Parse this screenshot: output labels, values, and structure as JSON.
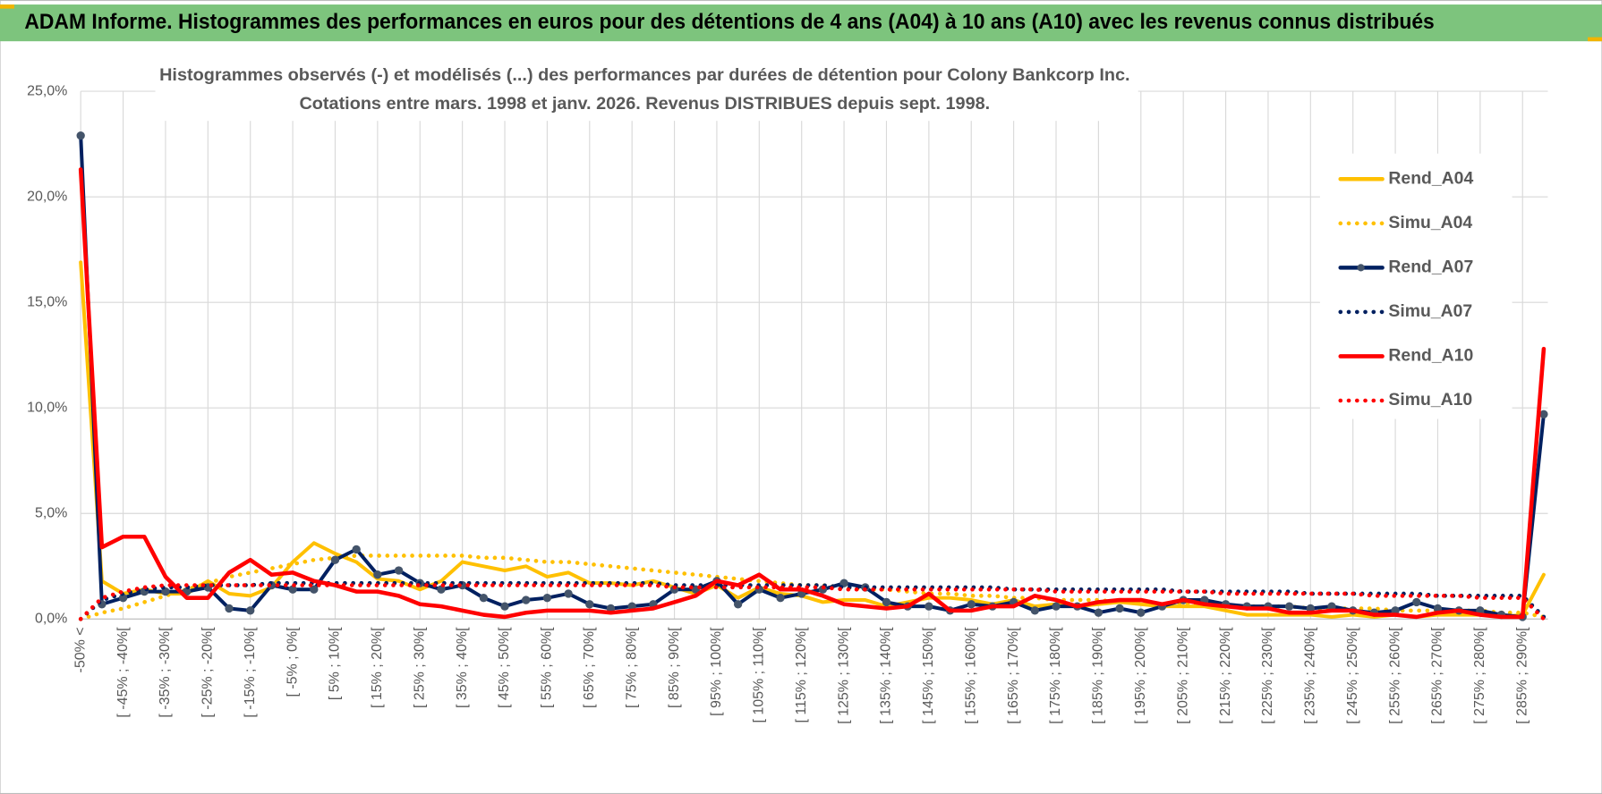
{
  "header": {
    "title": "ADAM Informe. Histogrammes des performances en euros pour des détentions de 4 ans (A04) à 10 ans (A10) avec les revenus connus distribués"
  },
  "chart_data": {
    "type": "line",
    "title": "Histogrammes observés (-) et modélisés (...) des performances par durées de détention pour Colony Bankcorp Inc.",
    "subtitle": "Cotations entre mars. 1998 et janv. 2026. Revenus DISTRIBUES depuis sept. 1998.",
    "categories": [
      "-50% <",
      null,
      "[ -45% ; -40%[",
      null,
      "[ -35% ; -30%[",
      null,
      "[ -25% ; -20%[",
      null,
      "[ -15% ; -10%[",
      null,
      "[ -5% ; 0%[",
      null,
      "[ 5% ; 10%[",
      null,
      "[ 15% ; 20%[",
      null,
      "[ 25% ; 30%[",
      null,
      "[ 35% ; 40%[",
      null,
      "[ 45% ; 50%[",
      null,
      "[ 55% ; 60%[",
      null,
      "[ 65% ; 70%[",
      null,
      "[ 75% ; 80%[",
      null,
      "[ 85% ; 90%[",
      null,
      "[ 95% ; 100%[",
      null,
      "[ 105% ; 110%[",
      null,
      "[ 115% ; 120%[",
      null,
      "[ 125% ; 130%[",
      null,
      "[ 135% ; 140%[",
      null,
      "[ 145% ; 150%[",
      null,
      "[ 155% ; 160%[",
      null,
      "[ 165% ; 170%[",
      null,
      "[ 175% ; 180%[",
      null,
      "[ 185% ; 190%[",
      null,
      "[ 195% ; 200%[",
      null,
      "[ 205% ; 210%[",
      null,
      "[ 215% ; 220%[",
      null,
      "[ 225% ; 230%[",
      null,
      "[ 235% ; 240%[",
      null,
      "[ 245% ; 250%[",
      null,
      "[ 255% ; 260%[",
      null,
      "[ 265% ; 270%[",
      null,
      "[ 275% ; 280%[",
      null,
      "[ 285% ; 290%[",
      null
    ],
    "ylim": [
      0,
      25
    ],
    "yticks": [
      {
        "value": 0,
        "label": "0,0%"
      },
      {
        "value": 5,
        "label": "5,0%"
      },
      {
        "value": 10,
        "label": "10,0%"
      },
      {
        "value": 15,
        "label": "15,0%"
      },
      {
        "value": 20,
        "label": "20,0%"
      },
      {
        "value": 25,
        "label": "25,0%"
      }
    ],
    "grid": true,
    "legend": "right",
    "series": [
      {
        "name": "Rend_A04",
        "color": "#ffc000",
        "style": "solid",
        "markers": false,
        "values": [
          16.9,
          1.8,
          1.2,
          1.4,
          1.2,
          1.2,
          1.8,
          1.2,
          1.1,
          1.5,
          2.7,
          3.6,
          3.1,
          2.7,
          1.9,
          1.8,
          1.4,
          1.8,
          2.7,
          2.5,
          2.3,
          2.5,
          2.0,
          2.2,
          1.7,
          1.7,
          1.6,
          1.8,
          1.5,
          1.2,
          1.6,
          1.0,
          1.5,
          1.2,
          1.1,
          0.8,
          0.9,
          0.9,
          0.6,
          0.8,
          1.0,
          1.0,
          0.9,
          0.7,
          0.9,
          0.6,
          0.7,
          0.6,
          0.7,
          0.8,
          0.7,
          0.6,
          0.6,
          0.6,
          0.4,
          0.2,
          0.2,
          0.2,
          0.2,
          0.1,
          0.2,
          0.1,
          0.2,
          0.1,
          0.2,
          0.2,
          0.2,
          0.1,
          0.2,
          2.1
        ]
      },
      {
        "name": "Simu_A04",
        "color": "#ffc000",
        "style": "dotted",
        "markers": false,
        "values": [
          0.0,
          0.3,
          0.5,
          0.8,
          1.1,
          1.4,
          1.7,
          2.0,
          2.2,
          2.4,
          2.6,
          2.8,
          2.9,
          3.0,
          3.0,
          3.0,
          3.0,
          3.0,
          3.0,
          2.9,
          2.9,
          2.8,
          2.7,
          2.7,
          2.6,
          2.5,
          2.4,
          2.3,
          2.2,
          2.1,
          2.0,
          1.9,
          1.8,
          1.7,
          1.6,
          1.6,
          1.5,
          1.4,
          1.4,
          1.3,
          1.2,
          1.2,
          1.1,
          1.1,
          1.0,
          1.0,
          0.9,
          0.9,
          0.9,
          0.8,
          0.8,
          0.7,
          0.7,
          0.7,
          0.6,
          0.6,
          0.6,
          0.6,
          0.5,
          0.5,
          0.5,
          0.5,
          0.4,
          0.4,
          0.4,
          0.4,
          0.4,
          0.3,
          0.3,
          0.1
        ]
      },
      {
        "name": "Rend_A07",
        "color": "#002060",
        "style": "solid",
        "markers": true,
        "values": [
          22.9,
          0.7,
          1.0,
          1.3,
          1.3,
          1.3,
          1.5,
          0.5,
          0.4,
          1.6,
          1.4,
          1.4,
          2.8,
          3.3,
          2.1,
          2.3,
          1.7,
          1.4,
          1.6,
          1.0,
          0.6,
          0.9,
          1.0,
          1.2,
          0.7,
          0.5,
          0.6,
          0.7,
          1.4,
          1.4,
          1.8,
          0.7,
          1.4,
          1.0,
          1.2,
          1.4,
          1.7,
          1.5,
          0.8,
          0.6,
          0.6,
          0.4,
          0.7,
          0.6,
          0.8,
          0.4,
          0.6,
          0.6,
          0.3,
          0.5,
          0.3,
          0.6,
          0.9,
          0.9,
          0.7,
          0.6,
          0.6,
          0.6,
          0.5,
          0.6,
          0.4,
          0.3,
          0.4,
          0.8,
          0.5,
          0.4,
          0.4,
          0.2,
          0.1,
          9.7
        ]
      },
      {
        "name": "Simu_A07",
        "color": "#002060",
        "style": "dotted",
        "markers": false,
        "values": [
          0.0,
          0.9,
          1.2,
          1.4,
          1.5,
          1.5,
          1.6,
          1.6,
          1.6,
          1.7,
          1.7,
          1.7,
          1.7,
          1.7,
          1.7,
          1.7,
          1.7,
          1.7,
          1.7,
          1.7,
          1.7,
          1.7,
          1.7,
          1.7,
          1.7,
          1.7,
          1.7,
          1.7,
          1.6,
          1.6,
          1.6,
          1.6,
          1.6,
          1.6,
          1.6,
          1.6,
          1.5,
          1.5,
          1.5,
          1.5,
          1.5,
          1.5,
          1.5,
          1.5,
          1.4,
          1.4,
          1.4,
          1.4,
          1.4,
          1.4,
          1.4,
          1.4,
          1.3,
          1.3,
          1.3,
          1.3,
          1.3,
          1.3,
          1.2,
          1.2,
          1.2,
          1.2,
          1.2,
          1.2,
          1.1,
          1.1,
          1.1,
          1.1,
          1.1,
          0.1
        ]
      },
      {
        "name": "Rend_A10",
        "color": "#ff0000",
        "style": "solid",
        "markers": false,
        "values": [
          21.3,
          3.4,
          3.9,
          3.9,
          2.0,
          1.0,
          1.0,
          2.2,
          2.8,
          2.1,
          2.2,
          1.8,
          1.6,
          1.3,
          1.3,
          1.1,
          0.7,
          0.6,
          0.4,
          0.2,
          0.1,
          0.3,
          0.4,
          0.4,
          0.4,
          0.3,
          0.4,
          0.5,
          0.8,
          1.1,
          1.8,
          1.6,
          2.1,
          1.4,
          1.4,
          1.1,
          0.7,
          0.6,
          0.5,
          0.6,
          1.2,
          0.4,
          0.4,
          0.6,
          0.6,
          1.1,
          0.9,
          0.6,
          0.8,
          0.9,
          0.9,
          0.7,
          0.9,
          0.7,
          0.6,
          0.5,
          0.5,
          0.3,
          0.3,
          0.4,
          0.4,
          0.2,
          0.2,
          0.1,
          0.3,
          0.4,
          0.2,
          0.1,
          0.1,
          12.8
        ]
      },
      {
        "name": "Simu_A10",
        "color": "#ff0000",
        "style": "dotted",
        "markers": false,
        "values": [
          0.0,
          1.0,
          1.3,
          1.5,
          1.6,
          1.6,
          1.6,
          1.6,
          1.6,
          1.6,
          1.6,
          1.6,
          1.6,
          1.6,
          1.6,
          1.6,
          1.6,
          1.6,
          1.6,
          1.6,
          1.6,
          1.6,
          1.6,
          1.6,
          1.6,
          1.6,
          1.6,
          1.6,
          1.5,
          1.5,
          1.5,
          1.5,
          1.5,
          1.5,
          1.5,
          1.5,
          1.4,
          1.4,
          1.4,
          1.4,
          1.4,
          1.4,
          1.4,
          1.4,
          1.4,
          1.4,
          1.3,
          1.3,
          1.3,
          1.3,
          1.3,
          1.3,
          1.3,
          1.3,
          1.2,
          1.2,
          1.2,
          1.2,
          1.2,
          1.2,
          1.2,
          1.1,
          1.1,
          1.1,
          1.1,
          1.1,
          1.0,
          1.0,
          1.0,
          0.0
        ]
      }
    ]
  }
}
